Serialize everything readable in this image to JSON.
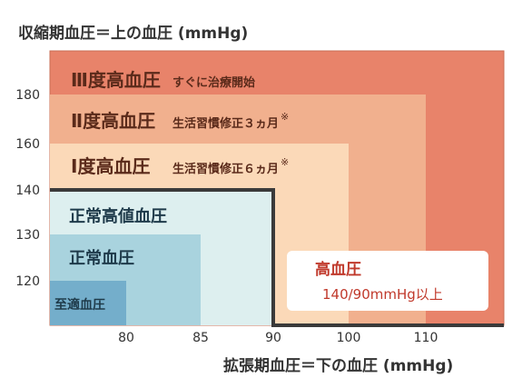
{
  "chart_data": {
    "type": "area",
    "title": "収縮期血圧＝上の血圧 (mmHg)",
    "xlabel": "拡張期血圧＝下の血圧 (mmHg)",
    "ylabel": "",
    "xlim": [
      70,
      120
    ],
    "ylim": [
      110,
      190
    ],
    "x_ticks": [
      "80",
      "85",
      "90",
      "100",
      "110"
    ],
    "x_tick_values": [
      80,
      85,
      90,
      100,
      110
    ],
    "y_ticks": [
      "120",
      "130",
      "140",
      "160",
      "180"
    ],
    "y_tick_values": [
      120,
      130,
      140,
      160,
      180
    ],
    "zones": [
      {
        "name": "Ⅲ度高血圧",
        "note": "すぐに治療開始",
        "asterisk": "",
        "x_max": 120,
        "y_max": 190,
        "fill": "#E8836A",
        "text_color": "#5a2a1a"
      },
      {
        "name": "Ⅱ度高血圧",
        "note": "生活習慣修正３ヵ月",
        "asterisk": "※",
        "x_max": 110,
        "y_max": 180,
        "fill": "#F1B08E",
        "text_color": "#5a2a1a"
      },
      {
        "name": "Ⅰ度高血圧",
        "note": "生活習慣修正６ヵ月",
        "asterisk": "※",
        "x_max": 100,
        "y_max": 160,
        "fill": "#FBD9B8",
        "text_color": "#5a2a1a"
      },
      {
        "name": "正常高値血圧",
        "note": "",
        "asterisk": "",
        "x_max": 90,
        "y_max": 140,
        "fill": "#DDEFEF",
        "text_color": "#1e3a4a"
      },
      {
        "name": "正常血圧",
        "note": "",
        "asterisk": "",
        "x_max": 85,
        "y_max": 130,
        "fill": "#A9D3DE",
        "text_color": "#1e3a4a"
      },
      {
        "name": "至適血圧",
        "note": "",
        "asterisk": "",
        "x_max": 80,
        "y_max": 120,
        "fill": "#74AECB",
        "text_color": "#1e3a4a"
      }
    ],
    "hypertension_box": {
      "label": "高血圧",
      "criteria": "140/90mmHg以上",
      "color": "#C0392B"
    }
  }
}
